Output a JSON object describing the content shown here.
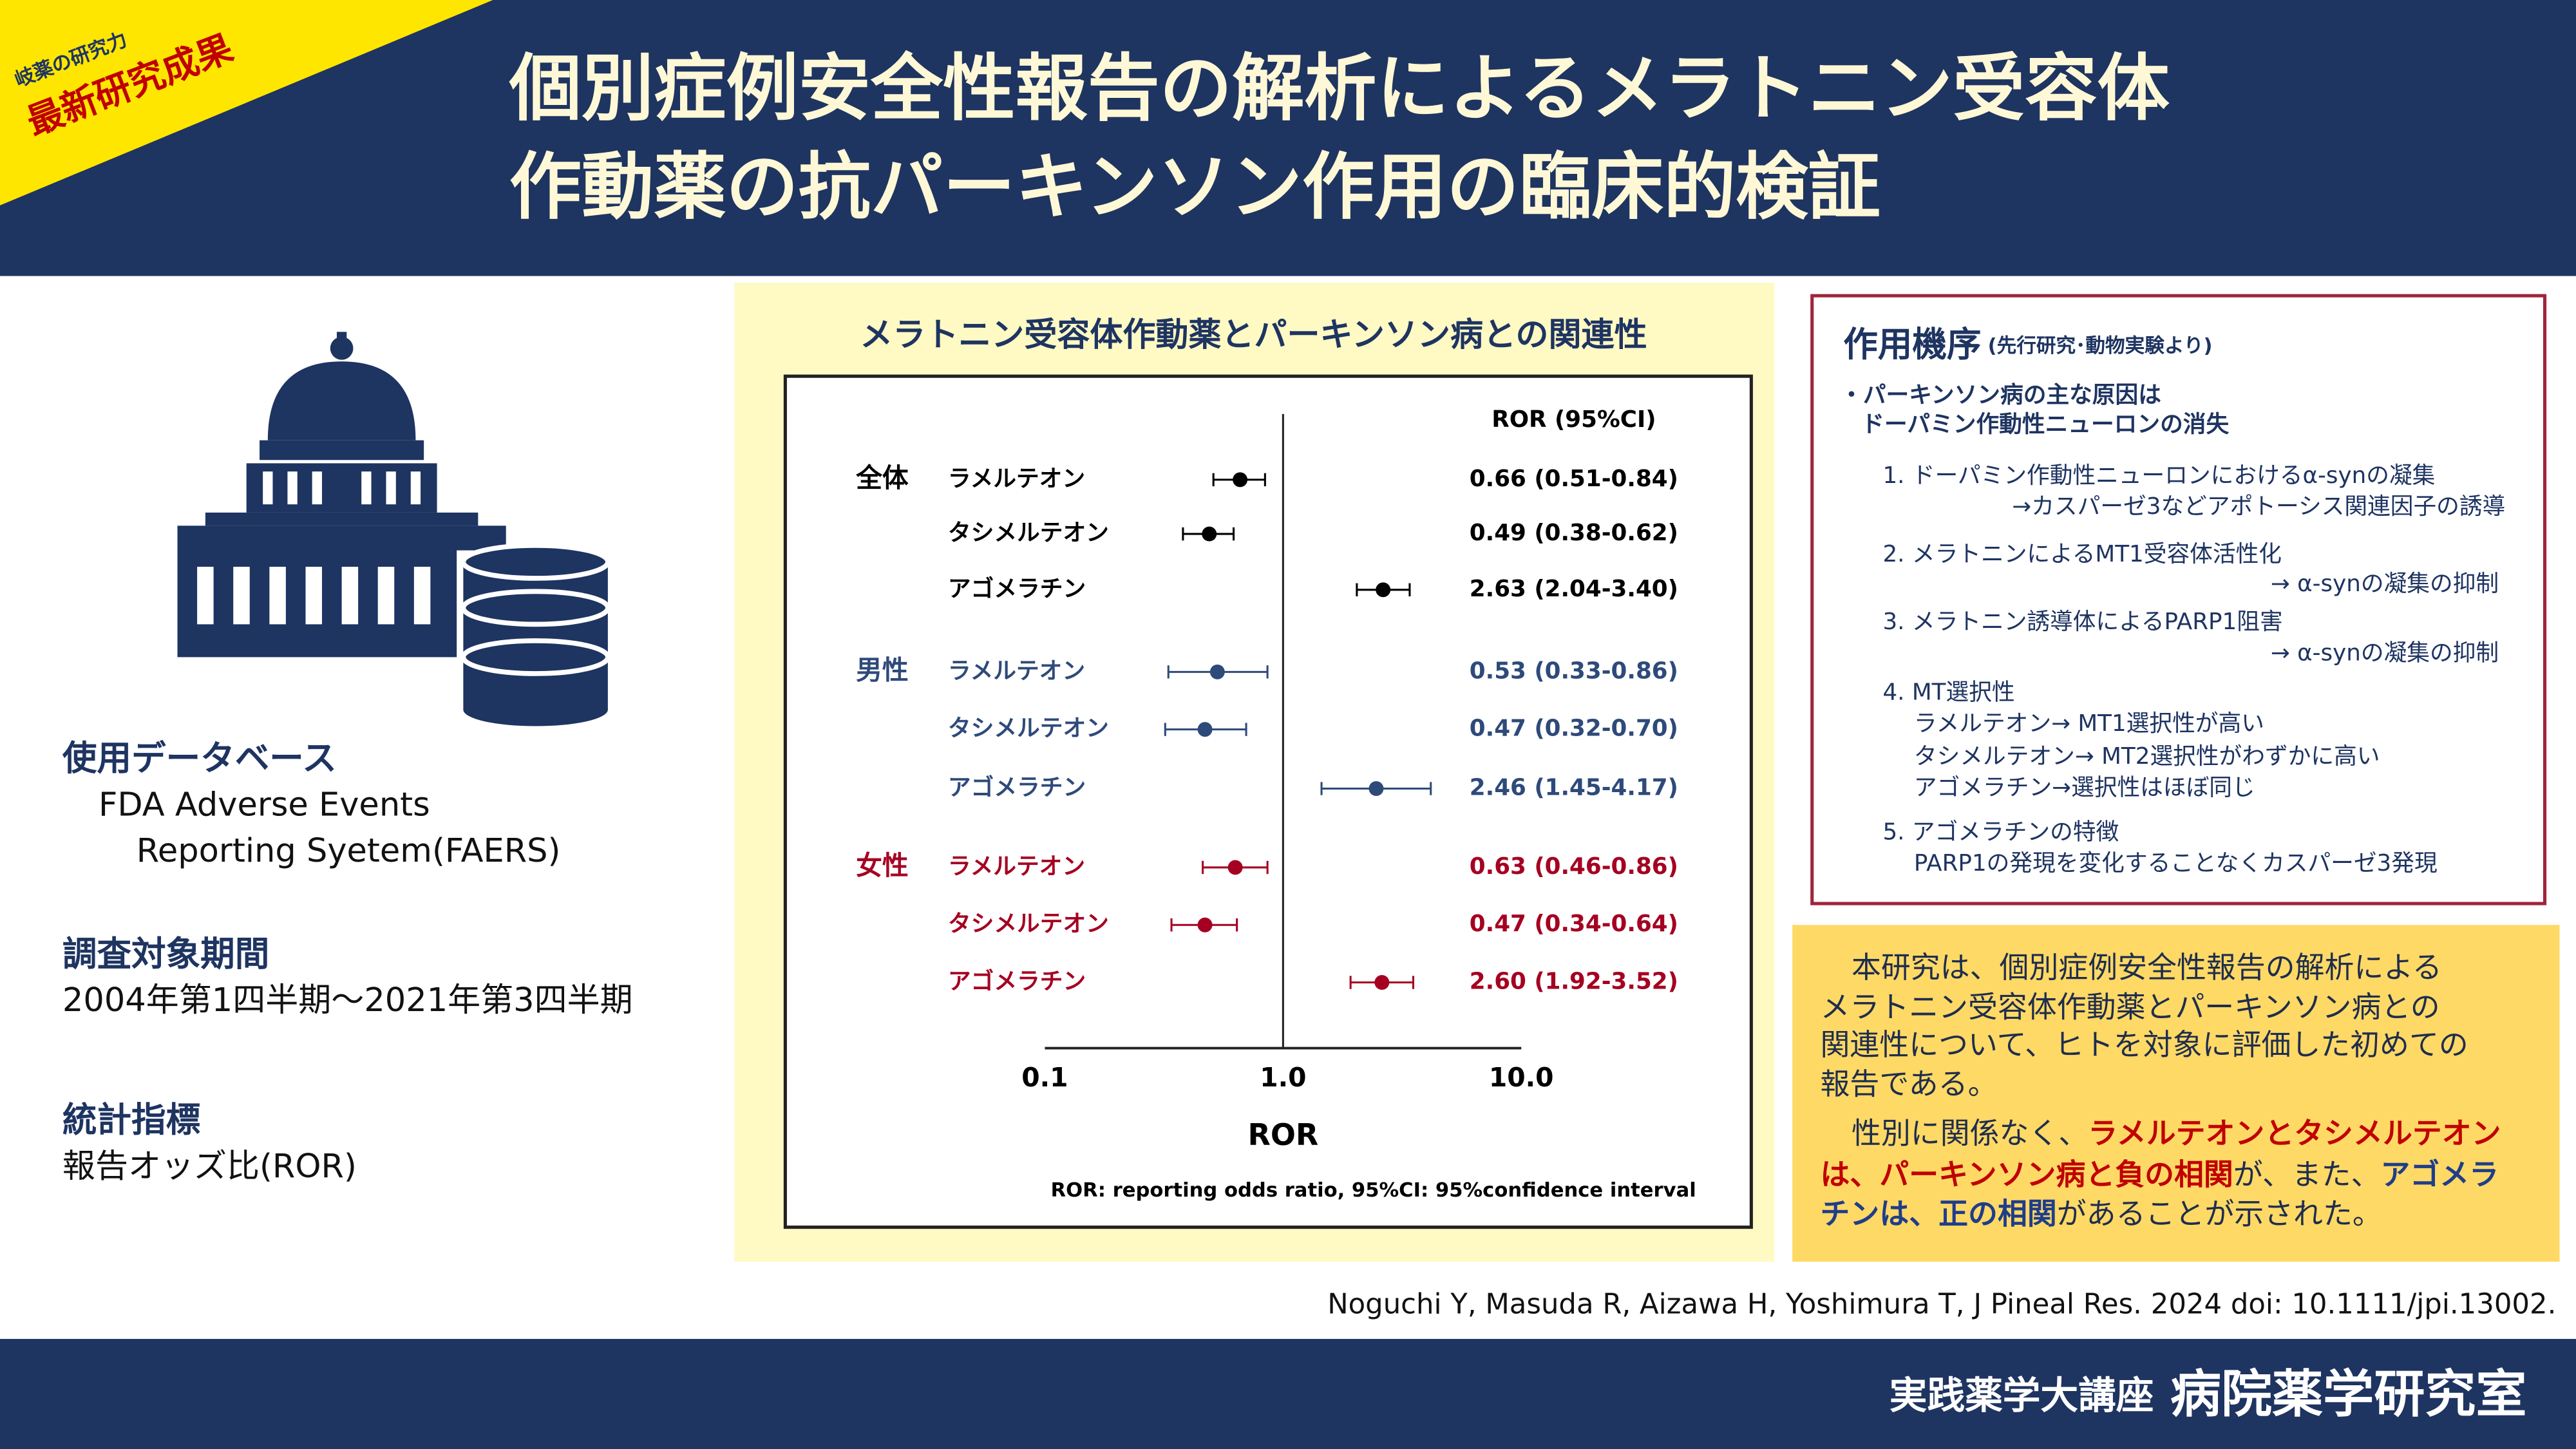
{
  "header": {
    "tag_small": "岐薬の研究力",
    "tag_main": "最新研究成果",
    "title_lines": [
      "個別症例安全性報告の解析によるメラトニン受容体",
      "作動薬の抗パーキンソン作用の臨床的検証"
    ]
  },
  "left": {
    "sections": [
      {
        "heading": "使用データベース",
        "lines": [
          "FDA Adverse Events",
          "Reporting Syetem(FAERS)"
        ]
      },
      {
        "heading": "調査対象期間",
        "lines": [
          "2004年第1四半期～2021年第3四半期"
        ]
      },
      {
        "heading": "統計指標",
        "lines": [
          "報告オッズ比(ROR)"
        ]
      }
    ]
  },
  "chart_data": {
    "type": "forest",
    "title": "メラトニン受容体作動薬とパーキンソン病との関連性",
    "x_label": "ROR",
    "column_header": "ROR (95%CI)",
    "footnote": "ROR: reporting odds ratio, 95%CI: 95%confidence interval",
    "log_scale": true,
    "xlim": [
      0.1,
      10
    ],
    "xticks": [
      0.1,
      {
        "value": 1,
        "label": "1.0"
      },
      {
        "value": 10,
        "label": "10.0"
      }
    ],
    "groups": [
      {
        "name": "全体",
        "color": "#000000",
        "rows": [
          {
            "label": "ラメルテオン",
            "value": 0.66,
            "lower": 0.51,
            "upper": 0.84,
            "value_label": "0.66 (0.51-0.84)"
          },
          {
            "label": "タシメルテオン",
            "value": 0.49,
            "lower": 0.38,
            "upper": 0.62,
            "value_label": "0.49 (0.38-0.62)"
          },
          {
            "label": "アゴメラチン",
            "value": 2.63,
            "lower": 2.04,
            "upper": 3.4,
            "value_label": "2.63 (2.04-3.40)"
          }
        ]
      },
      {
        "name": "男性",
        "color": "#2e4a7a",
        "rows": [
          {
            "label": "ラメルテオン",
            "value": 0.53,
            "lower": 0.33,
            "upper": 0.86,
            "value_label": "0.53 (0.33-0.86)"
          },
          {
            "label": "タシメルテオン",
            "value": 0.47,
            "lower": 0.32,
            "upper": 0.7,
            "value_label": "0.47 (0.32-0.70)"
          },
          {
            "label": "アゴメラチン",
            "value": 2.46,
            "lower": 1.45,
            "upper": 4.17,
            "value_label": "2.46 (1.45-4.17)"
          }
        ]
      },
      {
        "name": "女性",
        "color": "#a50021",
        "rows": [
          {
            "label": "ラメルテオン",
            "value": 0.63,
            "lower": 0.46,
            "upper": 0.86,
            "value_label": "0.63 (0.46-0.86)"
          },
          {
            "label": "タシメルテオン",
            "value": 0.47,
            "lower": 0.34,
            "upper": 0.64,
            "value_label": "0.47 (0.34-0.64)"
          },
          {
            "label": "アゴメラチン",
            "value": 2.6,
            "lower": 1.92,
            "upper": 3.52,
            "value_label": "2.60 (1.92-3.52)"
          }
        ]
      }
    ]
  },
  "mechanism": {
    "title": "作用機序",
    "subtitle": "(先行研究･動物実験より)",
    "lines": [
      "・パーキンソン病の主な原因は",
      "ドーパミン作動性ニューロンの消失",
      "1. ドーパミン作動性ニューロンにおけるα-synの凝集",
      "→カスパーゼ3などアポトーシス関連因子の誘導",
      "2. メラトニンによるMT1受容体活性化",
      "→ α-synの凝集の抑制",
      "3. メラトニン誘導体によるPARP1阻害",
      "→ α-synの凝集の抑制",
      "4. MT選択性",
      "ラメルテオン→ MT1選択性が高い",
      "タシメルテオン→ MT2選択性がわずかに高い",
      "アゴメラチン→選択性はほぼ同じ",
      "5. アゴメラチンの特徴",
      "PARP1の発現を変化することなくカスパーゼ3発現"
    ]
  },
  "conclusion": {
    "lines": [
      [
        {
          "text": "本研究は、個別症例安全性報告の解析による",
          "color": "#1f2d4d"
        }
      ],
      [
        {
          "text": "メラトニン受容体作動薬とパーキンソン病との",
          "color": "#1f2d4d"
        }
      ],
      [
        {
          "text": "関連性について、ヒトを対象に評価した初めての",
          "color": "#1f2d4d"
        }
      ],
      [
        {
          "text": "報告である。",
          "color": "#1f2d4d"
        }
      ],
      [
        {
          "text": "性別に関係なく、",
          "color": "#1f2d4d"
        },
        {
          "text": "ラメルテオンとタシメルテオン",
          "color": "#c00000"
        }
      ],
      [
        {
          "text": "は、パーキンソン病と負の相関",
          "color": "#c00000"
        },
        {
          "text": "が、また、",
          "color": "#1f2d4d"
        },
        {
          "text": "アゴメラ",
          "color": "#1f3d8a"
        }
      ],
      [
        {
          "text": "チンは、正の相関",
          "color": "#1f3d8a"
        },
        {
          "text": "があることが示された。",
          "color": "#1f2d4d"
        }
      ]
    ]
  },
  "citation": "Noguchi Y, Masuda R, Aizawa H, Yoshimura T, J Pineal Res. 2024 doi: 10.1111/jpi.13002.",
  "footer": {
    "department": "実践薬学大講座",
    "lab": "病院薬学研究室"
  }
}
